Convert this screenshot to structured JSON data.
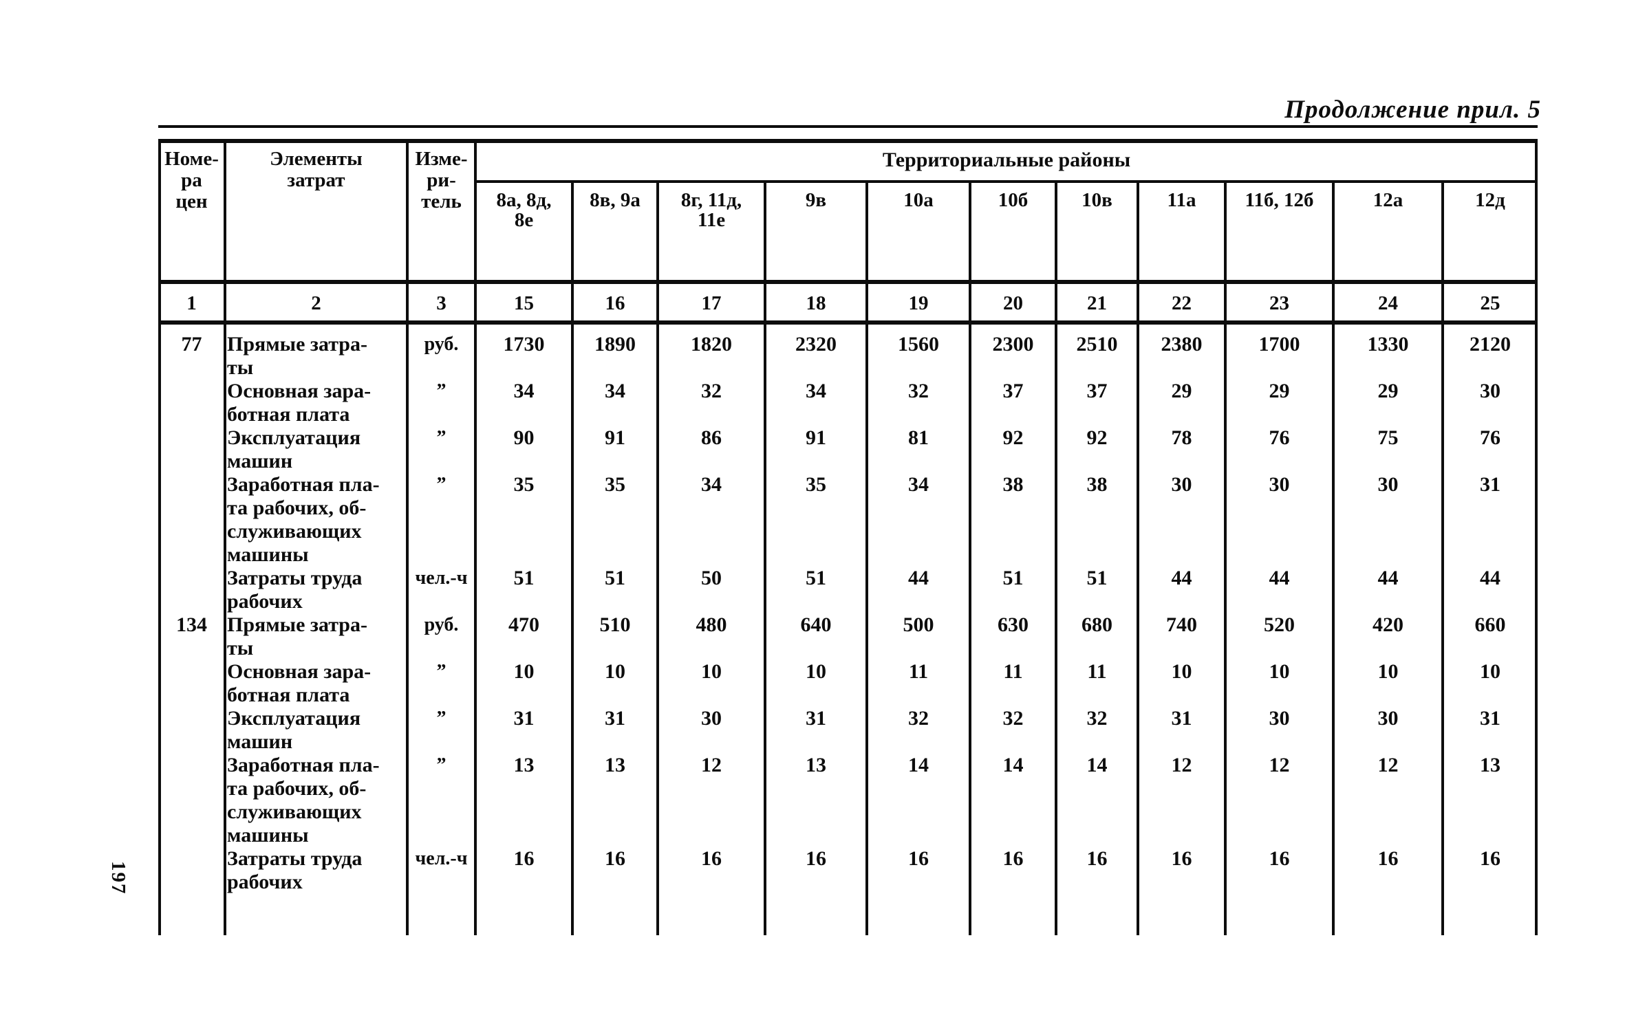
{
  "page": {
    "title": "Продолжение прил. 5",
    "page_number": "197"
  },
  "table": {
    "header": {
      "col1": "Номе-\nра\nцен",
      "col2": "Элементы\nзатрат",
      "col3": "Изме-\nри-\nтель",
      "districts_title": "Территориальные районы",
      "districts": [
        "8а, 8д,\n8е",
        "8в, 9а",
        "8г, 11д,\n11е",
        "9в",
        "10а",
        "10б",
        "10в",
        "11а",
        "11б, 12б",
        "12а",
        "12д"
      ],
      "numbering": [
        "1",
        "2",
        "3",
        "15",
        "16",
        "17",
        "18",
        "19",
        "20",
        "21",
        "22",
        "23",
        "24",
        "25"
      ]
    },
    "blocks": [
      {
        "price_number": "77",
        "rows": [
          {
            "label": "Прямые затра-\nты",
            "unit": "руб.",
            "values": [
              "1730",
              "1890",
              "1820",
              "2320",
              "1560",
              "2300",
              "2510",
              "2380",
              "1700",
              "1330",
              "2120"
            ]
          },
          {
            "label": "Основная зара-\nботная плата",
            "unit": "”",
            "values": [
              "34",
              "34",
              "32",
              "34",
              "32",
              "37",
              "37",
              "29",
              "29",
              "29",
              "30"
            ]
          },
          {
            "label": "Эксплуатация\nмашин",
            "unit": "”",
            "values": [
              "90",
              "91",
              "86",
              "91",
              "81",
              "92",
              "92",
              "78",
              "76",
              "75",
              "76"
            ]
          },
          {
            "label": "Заработная пла-\nта рабочих, об-\nслуживающих\nмашины",
            "unit": "”",
            "values": [
              "35",
              "35",
              "34",
              "35",
              "34",
              "38",
              "38",
              "30",
              "30",
              "30",
              "31"
            ]
          },
          {
            "label": "Затраты труда\nрабочих",
            "unit": "чел.-ч",
            "values": [
              "51",
              "51",
              "50",
              "51",
              "44",
              "51",
              "51",
              "44",
              "44",
              "44",
              "44"
            ]
          }
        ]
      },
      {
        "price_number": "134",
        "rows": [
          {
            "label": "Прямые затра-\nты",
            "unit": "руб.",
            "values": [
              "470",
              "510",
              "480",
              "640",
              "500",
              "630",
              "680",
              "740",
              "520",
              "420",
              "660"
            ]
          },
          {
            "label": "Основная зара-\nботная плата",
            "unit": "”",
            "values": [
              "10",
              "10",
              "10",
              "10",
              "11",
              "11",
              "11",
              "10",
              "10",
              "10",
              "10"
            ]
          },
          {
            "label": "Эксплуатация\nмашин",
            "unit": "”",
            "values": [
              "31",
              "31",
              "30",
              "31",
              "32",
              "32",
              "32",
              "31",
              "30",
              "30",
              "31"
            ]
          },
          {
            "label": "Заработная пла-\nта рабочих, об-\nслуживающих\nмашины",
            "unit": "”",
            "values": [
              "13",
              "13",
              "12",
              "13",
              "14",
              "14",
              "14",
              "12",
              "12",
              "12",
              "13"
            ]
          },
          {
            "label": "Затраты труда\nрабочих",
            "unit": "чел.-ч",
            "values": [
              "16",
              "16",
              "16",
              "16",
              "16",
              "16",
              "16",
              "16",
              "16",
              "16",
              "16"
            ]
          }
        ]
      }
    ]
  }
}
